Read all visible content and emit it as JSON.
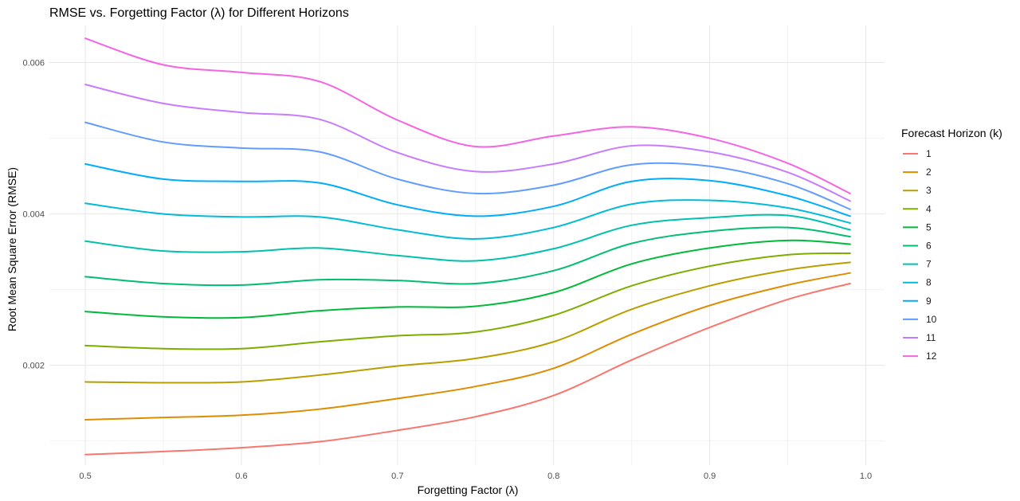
{
  "chart_data": {
    "type": "line",
    "title": "RMSE vs. Forgetting Factor (λ) for Different Horizons",
    "xlabel": "Forgetting Factor (λ)",
    "ylabel": "Root Mean Square Error (RMSE)",
    "xlim": [
      0.477,
      1.012
    ],
    "ylim": [
      0.00068,
      0.00649
    ],
    "x_ticks": [
      "0.5",
      "0.6",
      "0.7",
      "0.8",
      "0.9",
      "1.0"
    ],
    "x_tick_values": [
      0.5,
      0.6,
      0.7,
      0.8,
      0.9,
      1.0
    ],
    "y_ticks": [
      "0.002",
      "0.004",
      "0.006"
    ],
    "y_tick_values": [
      0.002,
      0.004,
      0.006
    ],
    "grid": true,
    "legend_title": "Forecast Horizon (k)",
    "legend_position": "right",
    "x": [
      0.5,
      0.55,
      0.6,
      0.65,
      0.7,
      0.75,
      0.8,
      0.85,
      0.9,
      0.95,
      0.99
    ],
    "series": [
      {
        "name": "1",
        "color": "#F8766D",
        "values": [
          0.00082,
          0.00086,
          0.00091,
          0.00099,
          0.00114,
          0.00132,
          0.0016,
          0.00207,
          0.0025,
          0.00287,
          0.00308
        ]
      },
      {
        "name": "2",
        "color": "#DE8C00",
        "values": [
          0.00128,
          0.00131,
          0.00134,
          0.00142,
          0.00156,
          0.00172,
          0.00196,
          0.00241,
          0.00279,
          0.00306,
          0.00322
        ]
      },
      {
        "name": "3",
        "color": "#B79F00",
        "values": [
          0.00178,
          0.00177,
          0.00178,
          0.00187,
          0.00199,
          0.00209,
          0.00231,
          0.00274,
          0.00305,
          0.00326,
          0.00336
        ]
      },
      {
        "name": "4",
        "color": "#7CAE00",
        "values": [
          0.00226,
          0.00222,
          0.00222,
          0.00231,
          0.00239,
          0.00244,
          0.00266,
          0.00305,
          0.00331,
          0.00346,
          0.00348
        ]
      },
      {
        "name": "5",
        "color": "#00BA38",
        "values": [
          0.00271,
          0.00264,
          0.00263,
          0.00272,
          0.00277,
          0.00278,
          0.00296,
          0.00334,
          0.00355,
          0.00365,
          0.0036
        ]
      },
      {
        "name": "6",
        "color": "#00BE70",
        "values": [
          0.00317,
          0.00308,
          0.00306,
          0.00313,
          0.00312,
          0.00308,
          0.00325,
          0.00361,
          0.00377,
          0.00382,
          0.0037
        ]
      },
      {
        "name": "7",
        "color": "#00C1AB",
        "values": [
          0.00364,
          0.00351,
          0.0035,
          0.00355,
          0.00345,
          0.00338,
          0.00354,
          0.00385,
          0.00395,
          0.00398,
          0.00379
        ]
      },
      {
        "name": "8",
        "color": "#00BBDA",
        "values": [
          0.00414,
          0.004,
          0.00396,
          0.00396,
          0.00379,
          0.00367,
          0.00382,
          0.00413,
          0.00418,
          0.00408,
          0.00388
        ]
      },
      {
        "name": "9",
        "color": "#00ACFC",
        "values": [
          0.00466,
          0.00446,
          0.00443,
          0.00441,
          0.00412,
          0.00397,
          0.0041,
          0.00443,
          0.00444,
          0.00424,
          0.00397
        ]
      },
      {
        "name": "10",
        "color": "#619CFF",
        "values": [
          0.00521,
          0.00495,
          0.00487,
          0.00482,
          0.00446,
          0.00427,
          0.00438,
          0.00465,
          0.00463,
          0.0044,
          0.00406
        ]
      },
      {
        "name": "11",
        "color": "#C77CFF",
        "values": [
          0.00571,
          0.00546,
          0.00534,
          0.00525,
          0.00481,
          0.00456,
          0.00466,
          0.0049,
          0.00482,
          0.00455,
          0.00417
        ]
      },
      {
        "name": "12",
        "color": "#F564E3",
        "values": [
          0.00632,
          0.00597,
          0.00587,
          0.00575,
          0.00524,
          0.00489,
          0.00503,
          0.00515,
          0.005,
          0.00467,
          0.00427
        ]
      }
    ]
  }
}
